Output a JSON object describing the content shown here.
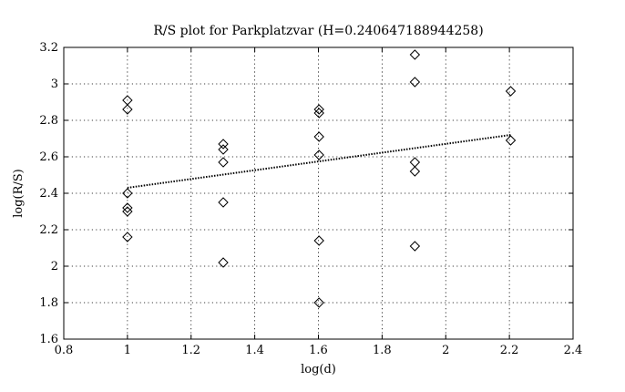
{
  "chart_data": {
    "type": "scatter",
    "title": "R/S plot for Parkplatzvar (H=0.240647188944258)",
    "xlabel": "log(d)",
    "ylabel": "log(R/S)",
    "xlim": [
      0.8,
      2.4
    ],
    "ylim": [
      1.6,
      3.2
    ],
    "xticks": [
      "0.8",
      "1",
      "1.2",
      "1.4",
      "1.6",
      "1.8",
      "2",
      "2.2",
      "2.4"
    ],
    "yticks": [
      "1.6",
      "1.8",
      "2",
      "2.2",
      "2.4",
      "2.6",
      "2.8",
      "3",
      "3.2"
    ],
    "grid": true,
    "marker": "diamond",
    "points": [
      {
        "x": 1.0,
        "y": 2.91
      },
      {
        "x": 1.0,
        "y": 2.86
      },
      {
        "x": 1.0,
        "y": 2.4
      },
      {
        "x": 1.0,
        "y": 2.32
      },
      {
        "x": 1.0,
        "y": 2.3
      },
      {
        "x": 1.0,
        "y": 2.16
      },
      {
        "x": 1.301,
        "y": 2.67
      },
      {
        "x": 1.301,
        "y": 2.64
      },
      {
        "x": 1.301,
        "y": 2.57
      },
      {
        "x": 1.301,
        "y": 2.35
      },
      {
        "x": 1.301,
        "y": 2.02
      },
      {
        "x": 1.602,
        "y": 2.86
      },
      {
        "x": 1.602,
        "y": 2.84
      },
      {
        "x": 1.602,
        "y": 2.71
      },
      {
        "x": 1.602,
        "y": 2.61
      },
      {
        "x": 1.602,
        "y": 2.14
      },
      {
        "x": 1.602,
        "y": 1.8
      },
      {
        "x": 1.903,
        "y": 3.16
      },
      {
        "x": 1.903,
        "y": 3.01
      },
      {
        "x": 1.903,
        "y": 2.57
      },
      {
        "x": 1.903,
        "y": 2.52
      },
      {
        "x": 1.903,
        "y": 2.11
      },
      {
        "x": 2.204,
        "y": 2.96
      },
      {
        "x": 2.204,
        "y": 2.69
      }
    ],
    "fit_line": {
      "style": "dotted",
      "x": [
        1.0,
        2.204
      ],
      "y": [
        2.43,
        2.72
      ]
    }
  }
}
